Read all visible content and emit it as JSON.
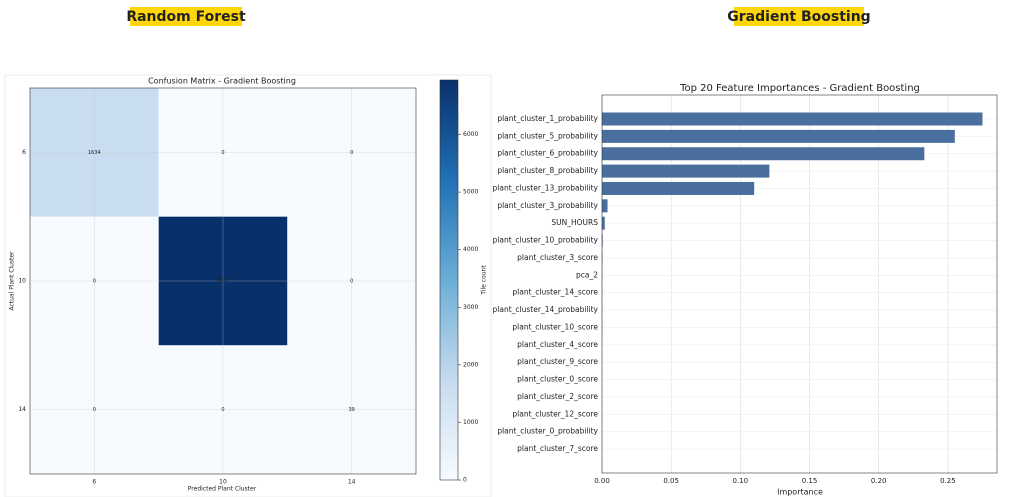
{
  "labels": [
    "Random Forest",
    "Gradient Boosting"
  ],
  "chart_data": [
    {
      "type": "heatmap",
      "title": "Confusion Matrix - Gradient Boosting",
      "x_label": "Predicted Plant Cluster",
      "y_label": "Actual Plant Cluster",
      "x_categories": [
        "6",
        "10",
        "14"
      ],
      "y_categories": [
        "6",
        "10",
        "14"
      ],
      "values": [
        [
          1634,
          0,
          0
        ],
        [
          0,
          6947,
          0
        ],
        [
          0,
          0,
          39
        ]
      ],
      "colormap": "Blues",
      "clim": [
        0,
        6947
      ],
      "colorbar_label": "Tile count",
      "colorbar_ticks": [
        0,
        1000,
        2000,
        3000,
        4000,
        5000,
        6000
      ],
      "grid": true
    },
    {
      "type": "barh",
      "title": "Top 20 Feature Importances - Gradient Boosting",
      "x_label": "Importance",
      "categories": [
        "plant_cluster_1_probability",
        "plant_cluster_5_probability",
        "plant_cluster_6_probability",
        "plant_cluster_8_probability",
        "plant_cluster_13_probability",
        "plant_cluster_3_probability",
        "SUN_HOURS",
        "plant_cluster_10_probability",
        "plant_cluster_3_score",
        "pca_2",
        "plant_cluster_14_score",
        "plant_cluster_14_probability",
        "plant_cluster_10_score",
        "plant_cluster_4_score",
        "plant_cluster_9_score",
        "plant_cluster_0_score",
        "plant_cluster_2_score",
        "plant_cluster_12_score",
        "plant_cluster_0_probability",
        "plant_cluster_7_score"
      ],
      "values": [
        0.275,
        0.255,
        0.233,
        0.121,
        0.11,
        0.004,
        0.002,
        0.0005,
        0.0003,
        0.0002,
        0.0001,
        0.0001,
        0.0001,
        0,
        0,
        0,
        0,
        0,
        0,
        0
      ],
      "color": "#4a6f9f",
      "xlim": [
        0,
        0.2855
      ],
      "xticks": [
        {
          "value": 0,
          "label": "0.00"
        },
        {
          "value": 0.05,
          "label": "0.05"
        },
        {
          "value": 0.1,
          "label": "0.10"
        },
        {
          "value": 0.15,
          "label": "0.15"
        },
        {
          "value": 0.2,
          "label": "0.20"
        },
        {
          "value": 0.25,
          "label": "0.25"
        }
      ],
      "grid": true
    }
  ]
}
